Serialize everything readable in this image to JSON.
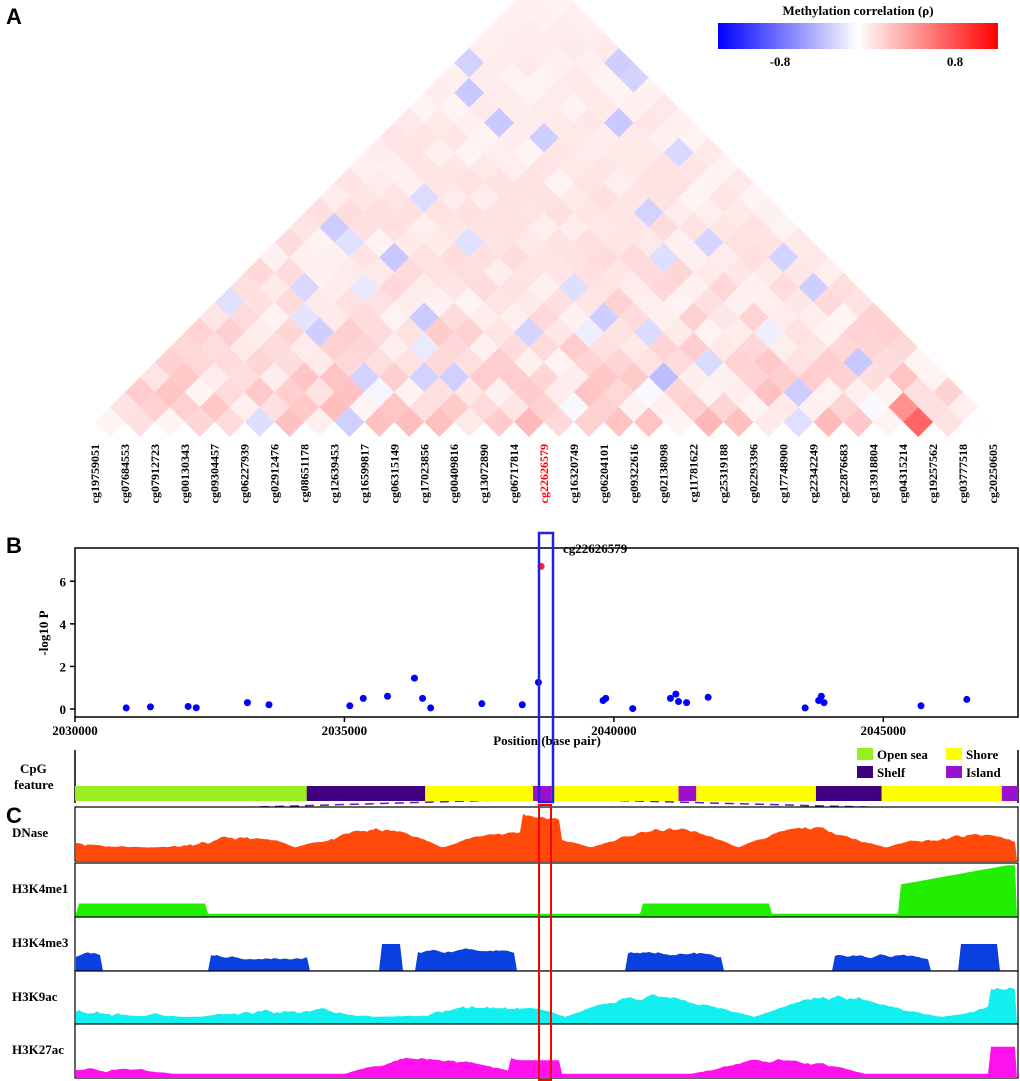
{
  "panels": {
    "a": "A",
    "b": "B",
    "c": "C"
  },
  "colors": {
    "neg": "#0000ff",
    "pos": "#ff0000",
    "point": "#0000ff",
    "highlight_point": "#ff2222",
    "highlight_label": "#ff0000",
    "blue_box": "#2222dd",
    "red_box": "#ff0000"
  },
  "chart_data": [
    {
      "type": "heatmap",
      "title": "Methylation correlation (ρ)",
      "colorbar": {
        "ticks": [
          "-0.8",
          "0.8"
        ],
        "range": [
          -1,
          1
        ]
      },
      "probes": [
        "cg19759051",
        "cg07684553",
        "cg07912723",
        "cg00130343",
        "cg09304457",
        "cg06227939",
        "cg02912476",
        "cg08651178",
        "cg12639453",
        "cg16599817",
        "cg06315149",
        "cg17023856",
        "cg00409816",
        "cg13072890",
        "cg06717814",
        "cg22626579",
        "cg16320749",
        "cg06204101",
        "cg09322616",
        "cg02138098",
        "cg11781622",
        "cg25319188",
        "cg02293396",
        "cg17748900",
        "cg22342249",
        "cg22876683",
        "cg13918804",
        "cg04315214",
        "cg19257562",
        "cg03777518",
        "cg20250605"
      ],
      "highlight_probe": "cg22626579",
      "matrix_note": "lower-triangle LD-style display of pairwise correlations"
    },
    {
      "type": "scatter",
      "xlabel": "Position (base pair)",
      "ylabel": "-log10 P",
      "xlim": [
        2030000,
        2047500
      ],
      "ylim": [
        0,
        7
      ],
      "x_ticks": [
        2030000,
        2035000,
        2040000,
        2045000
      ],
      "y_ticks": [
        0,
        2,
        4,
        6
      ],
      "annotation": "cg22626579",
      "highlight": {
        "x": 2038650,
        "y": 6.7
      },
      "points": [
        [
          2030950,
          0.05
        ],
        [
          2031400,
          0.1
        ],
        [
          2032100,
          0.12
        ],
        [
          2032250,
          0.06
        ],
        [
          2033200,
          0.3
        ],
        [
          2033600,
          0.2
        ],
        [
          2035100,
          0.15
        ],
        [
          2035350,
          0.5
        ],
        [
          2035800,
          0.6
        ],
        [
          2036300,
          1.45
        ],
        [
          2036450,
          0.5
        ],
        [
          2036600,
          0.05
        ],
        [
          2037550,
          0.25
        ],
        [
          2038300,
          0.2
        ],
        [
          2038600,
          1.25
        ],
        [
          2039800,
          0.4
        ],
        [
          2039850,
          0.5
        ],
        [
          2040350,
          0.02
        ],
        [
          2041050,
          0.5
        ],
        [
          2041150,
          0.7
        ],
        [
          2041200,
          0.35
        ],
        [
          2041350,
          0.3
        ],
        [
          2041750,
          0.55
        ],
        [
          2043550,
          0.05
        ],
        [
          2043800,
          0.4
        ],
        [
          2043850,
          0.6
        ],
        [
          2043900,
          0.3
        ],
        [
          2045700,
          0.15
        ],
        [
          2046550,
          0.45
        ]
      ]
    },
    {
      "type": "area",
      "cpg_label": [
        "CpG",
        "feature"
      ],
      "cpg_legend": [
        {
          "name": "Open sea",
          "color": "#99ee22"
        },
        {
          "name": "Shore",
          "color": "#ffff00"
        },
        {
          "name": "Shelf",
          "color": "#400080"
        },
        {
          "name": "Island",
          "color": "#9911cc"
        }
      ],
      "cpg_segments": [
        {
          "start": 2030000,
          "end": 2034300,
          "kind": "Open sea"
        },
        {
          "start": 2034300,
          "end": 2036500,
          "kind": "Shelf"
        },
        {
          "start": 2036500,
          "end": 2038500,
          "kind": "Shore"
        },
        {
          "start": 2038500,
          "end": 2038850,
          "kind": "Island"
        },
        {
          "start": 2038850,
          "end": 2041200,
          "kind": "Shore"
        },
        {
          "start": 2041200,
          "end": 2041530,
          "kind": "Island"
        },
        {
          "start": 2041530,
          "end": 2043750,
          "kind": "Shore"
        },
        {
          "start": 2043750,
          "end": 2044970,
          "kind": "Shelf"
        },
        {
          "start": 2044970,
          "end": 2047200,
          "kind": "Shore"
        },
        {
          "start": 2047200,
          "end": 2047500,
          "kind": "Island"
        }
      ],
      "tracks": [
        {
          "name": "DNase",
          "color": "#ff4a0a"
        },
        {
          "name": "H3K4me1",
          "color": "#22ee00"
        },
        {
          "name": "H3K4me3",
          "color": "#0a3fe0"
        },
        {
          "name": "H3K9ac",
          "color": "#11f0ee"
        },
        {
          "name": "H3K27ac",
          "color": "#ff11ee"
        }
      ]
    }
  ]
}
